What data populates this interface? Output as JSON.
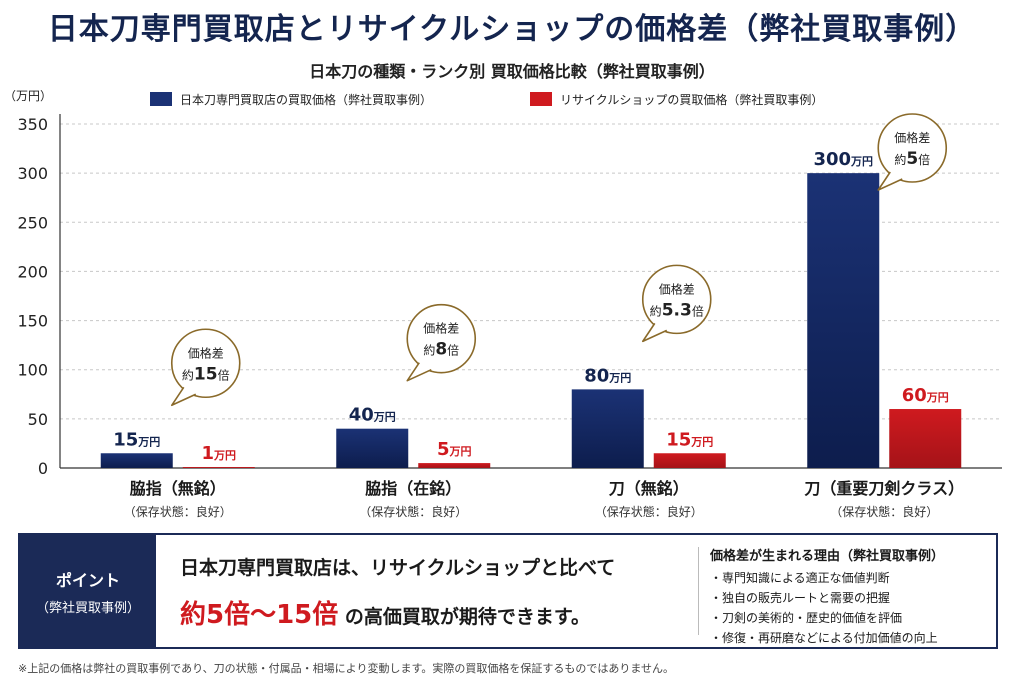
{
  "title": "日本刀専門買取店とリサイクルショップの価格差（弊社買取事例）",
  "subtitle": "日本刀の種類・ランク別 買取価格比較（弊社買取事例）",
  "chart_data": {
    "type": "bar",
    "ylabel": "（万円）",
    "ylim": [
      0,
      350
    ],
    "yticks": [
      0,
      50,
      100,
      150,
      200,
      250,
      300,
      350
    ],
    "grid": true,
    "legend_position": "top",
    "unit": "万円",
    "categories": [
      {
        "name": "脇指（無銘）",
        "sub": "（保存状態：良好）"
      },
      {
        "name": "脇指（在銘）",
        "sub": "（保存状態：良好）"
      },
      {
        "name": "刀（無銘）",
        "sub": "（保存状態：良好）"
      },
      {
        "name": "刀（重要刀剣クラス）",
        "sub": "（保存状態：良好）"
      }
    ],
    "series": [
      {
        "name": "日本刀専門買取店の買取価格（弊社買取事例）",
        "color": "#1b3275",
        "values": [
          15,
          40,
          80,
          300
        ]
      },
      {
        "name": "リサイクルショップの買取価格（弊社買取事例）",
        "color": "#cf1a1f",
        "values": [
          1,
          5,
          15,
          60
        ]
      }
    ],
    "callouts": [
      {
        "line1": "価格差",
        "prefix": "約",
        "ratio": "15",
        "suffix": "倍"
      },
      {
        "line1": "価格差",
        "prefix": "約",
        "ratio": "8",
        "suffix": "倍"
      },
      {
        "line1": "価格差",
        "prefix": "約",
        "ratio": "5.3",
        "suffix": "倍"
      },
      {
        "line1": "価格差",
        "prefix": "約",
        "ratio": "5",
        "suffix": "倍"
      }
    ]
  },
  "point": {
    "label": "ポイント",
    "label_sub": "（弊社買取事例）",
    "line1": "日本刀専門買取店は、リサイクルショップと比べて",
    "highlight": "約5倍〜15倍",
    "line2_rest": " の高価買取が期待できます。",
    "reasons_title": "価格差が生まれる理由（弊社買取事例）",
    "reasons": [
      "・専門知識による適正な価値判断",
      "・独自の販売ルートと需要の把握",
      "・刀剣の美術的・歴史的価値を評価",
      "・修復・再研磨などによる付加価値の向上"
    ]
  },
  "footnote": "※上記の価格は弊社の買取事例であり、刀の状態・付属品・相場により変動します。実際の買取価格を保証するものではありません。"
}
